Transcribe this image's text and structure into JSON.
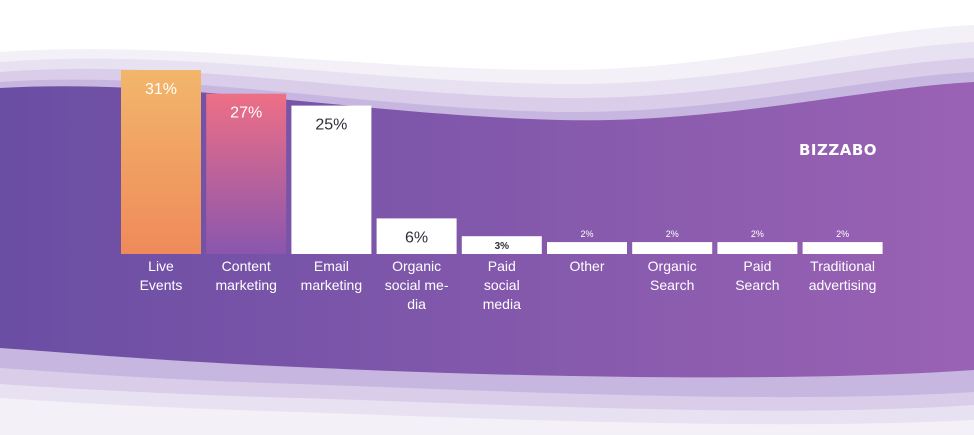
{
  "brand": {
    "logo_text": "BIZZABO"
  },
  "colors": {
    "band_left": "#6a4ea3",
    "band_right": "#9a62b4",
    "bar_live_top": "#f2b66b",
    "bar_live_bottom": "#ef8a5a",
    "bar_content_top": "#ee6f86",
    "bar_content_bottom": "#8a56ae",
    "bar_default": "#ffffff",
    "label_white": "#ffffff",
    "label_dark": "#2f2f3a"
  },
  "chart_data": {
    "type": "bar",
    "title": "",
    "xlabel": "",
    "ylabel": "",
    "ylim": [
      0,
      31
    ],
    "grid": false,
    "categories": [
      [
        "Live",
        "Events"
      ],
      [
        "Content",
        "marketing"
      ],
      [
        "Email",
        "marketing"
      ],
      [
        "Organic",
        "social me-",
        "dia"
      ],
      [
        "Paid",
        "social",
        "media"
      ],
      [
        "Other"
      ],
      [
        "Organic",
        "Search"
      ],
      [
        "Paid",
        "Search"
      ],
      [
        "Traditional",
        "advertising"
      ]
    ],
    "values": [
      31,
      27,
      25,
      6,
      3,
      2,
      2,
      2,
      2
    ],
    "value_labels": [
      "31%",
      "27%",
      "25%",
      "6%",
      "3%",
      "2%",
      "2%",
      "2%",
      "2%"
    ]
  }
}
